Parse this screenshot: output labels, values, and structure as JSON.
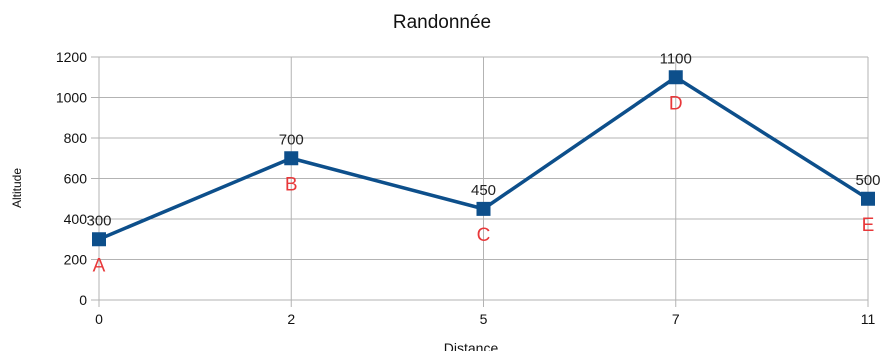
{
  "chart_data": {
    "type": "line",
    "title": "Randonnée",
    "xlabel": "Distance",
    "ylabel": "Altitude",
    "categories": [
      "0",
      "2",
      "5",
      "7",
      "11"
    ],
    "series": [
      {
        "values": [
          300,
          700,
          450,
          1100,
          500
        ],
        "data_labels": [
          "300",
          "700",
          "450",
          "1100",
          "500"
        ],
        "point_labels": [
          "A",
          "B",
          "C",
          "D",
          "E"
        ],
        "color": "#0d4f8b",
        "marker": "square"
      }
    ],
    "ylim": [
      0,
      1200
    ],
    "yticks": [
      "0",
      "200",
      "400",
      "600",
      "800",
      "1000",
      "1200"
    ],
    "grid": true,
    "legend": "none",
    "point_label_color": "#e8383a"
  }
}
